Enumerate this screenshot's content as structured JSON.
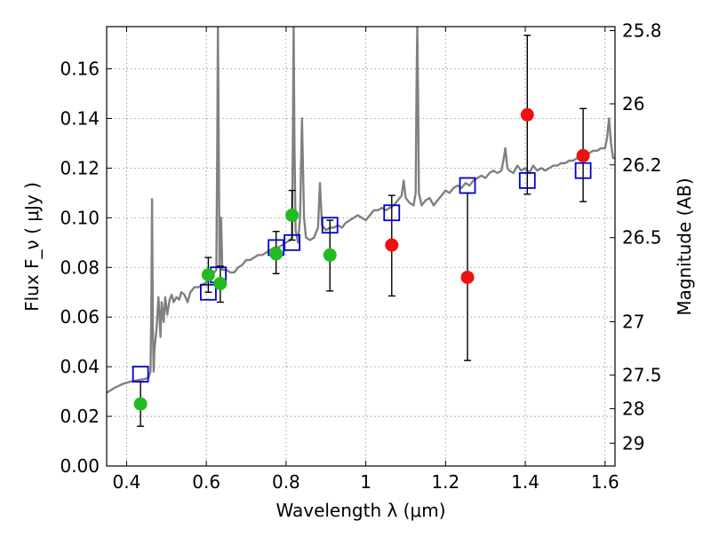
{
  "chart_data": {
    "type": "scatter",
    "title": "",
    "xlabel": "Wavelength  λ (μm)",
    "ylabel": "Flux  F_ν  ( μJy )",
    "y2label": "Magnitude (AB)",
    "xlim": [
      0.35,
      1.625
    ],
    "ylim": [
      0.0,
      0.177
    ],
    "grid": true,
    "x_ticks": [
      0.4,
      0.6,
      0.8,
      1.0,
      1.2,
      1.4,
      1.6
    ],
    "x_tick_labels": [
      "0.4",
      "0.6",
      "0.8",
      "1",
      "1.2",
      "1.4",
      "1.6"
    ],
    "y_ticks": [
      0.0,
      0.02,
      0.04,
      0.06,
      0.08,
      0.1,
      0.12,
      0.14,
      0.16
    ],
    "y_tick_labels": [
      "0.00",
      "0.02",
      "0.04",
      "0.06",
      "0.08",
      "0.10",
      "0.12",
      "0.14",
      "0.16"
    ],
    "y2_ticks": [
      {
        "label": "25.8",
        "flux": 0.1754
      },
      {
        "label": "26",
        "flux": 0.1459
      },
      {
        "label": "26.2",
        "flux": 0.1213
      },
      {
        "label": "26.5",
        "flux": 0.092
      },
      {
        "label": "27",
        "flux": 0.0581
      },
      {
        "label": "27.5",
        "flux": 0.0366
      },
      {
        "label": "28",
        "flux": 0.0231
      },
      {
        "label": "29",
        "flux": 0.0092
      }
    ],
    "colors": {
      "spectrum": "#808080",
      "model": "#0000cc",
      "green": "#22bb22",
      "red": "#ee1111",
      "errorbar": "#000000",
      "grid": "#888888"
    },
    "series": [
      {
        "type": "line",
        "points": [
          [
            0.35,
            0.0295
          ],
          [
            0.37,
            0.0315
          ],
          [
            0.39,
            0.033
          ],
          [
            0.41,
            0.034
          ],
          [
            0.425,
            0.0345
          ],
          [
            0.445,
            0.035
          ],
          [
            0.455,
            0.0355
          ],
          [
            0.46,
            0.038
          ],
          [
            0.462,
            0.06
          ],
          [
            0.464,
            0.1075
          ],
          [
            0.466,
            0.056
          ],
          [
            0.468,
            0.038
          ],
          [
            0.47,
            0.047
          ],
          [
            0.475,
            0.055
          ],
          [
            0.48,
            0.068
          ],
          [
            0.485,
            0.052
          ],
          [
            0.488,
            0.066
          ],
          [
            0.493,
            0.058
          ],
          [
            0.497,
            0.068
          ],
          [
            0.502,
            0.061
          ],
          [
            0.508,
            0.067
          ],
          [
            0.513,
            0.069
          ],
          [
            0.518,
            0.066
          ],
          [
            0.525,
            0.068
          ],
          [
            0.532,
            0.067
          ],
          [
            0.537,
            0.07
          ],
          [
            0.545,
            0.069
          ],
          [
            0.553,
            0.066
          ],
          [
            0.56,
            0.07
          ],
          [
            0.57,
            0.072
          ],
          [
            0.58,
            0.072
          ],
          [
            0.59,
            0.073
          ],
          [
            0.6,
            0.074
          ],
          [
            0.61,
            0.076
          ],
          [
            0.62,
            0.078
          ],
          [
            0.625,
            0.079
          ],
          [
            0.627,
            0.12
          ],
          [
            0.629,
            0.177
          ],
          [
            0.631,
            0.13
          ],
          [
            0.633,
            0.08
          ],
          [
            0.637,
            0.1
          ],
          [
            0.64,
            0.079
          ],
          [
            0.65,
            0.079
          ],
          [
            0.66,
            0.078
          ],
          [
            0.67,
            0.078
          ],
          [
            0.68,
            0.08
          ],
          [
            0.69,
            0.081
          ],
          [
            0.7,
            0.083
          ],
          [
            0.71,
            0.083
          ],
          [
            0.72,
            0.084
          ],
          [
            0.73,
            0.085
          ],
          [
            0.74,
            0.085
          ],
          [
            0.75,
            0.086
          ],
          [
            0.76,
            0.087
          ],
          [
            0.77,
            0.088
          ],
          [
            0.78,
            0.088
          ],
          [
            0.79,
            0.089
          ],
          [
            0.8,
            0.09
          ],
          [
            0.81,
            0.091
          ],
          [
            0.815,
            0.092
          ],
          [
            0.817,
            0.13
          ],
          [
            0.819,
            0.177
          ],
          [
            0.821,
            0.13
          ],
          [
            0.824,
            0.095
          ],
          [
            0.83,
            0.09
          ],
          [
            0.835,
            0.1
          ],
          [
            0.84,
            0.14
          ],
          [
            0.845,
            0.1
          ],
          [
            0.85,
            0.092
          ],
          [
            0.86,
            0.091
          ],
          [
            0.87,
            0.092
          ],
          [
            0.88,
            0.096
          ],
          [
            0.885,
            0.114
          ],
          [
            0.89,
            0.097
          ],
          [
            0.9,
            0.095
          ],
          [
            0.91,
            0.096
          ],
          [
            0.92,
            0.096
          ],
          [
            0.93,
            0.097
          ],
          [
            0.94,
            0.096
          ],
          [
            0.95,
            0.098
          ],
          [
            0.96,
            0.099
          ],
          [
            0.97,
            0.1
          ],
          [
            0.98,
            0.101
          ],
          [
            0.99,
            0.1
          ],
          [
            1.0,
            0.099
          ],
          [
            1.01,
            0.101
          ],
          [
            1.02,
            0.103
          ],
          [
            1.03,
            0.103
          ],
          [
            1.04,
            0.104
          ],
          [
            1.05,
            0.103
          ],
          [
            1.06,
            0.104
          ],
          [
            1.07,
            0.105
          ],
          [
            1.08,
            0.107
          ],
          [
            1.09,
            0.109
          ],
          [
            1.095,
            0.115
          ],
          [
            1.1,
            0.108
          ],
          [
            1.11,
            0.106
          ],
          [
            1.12,
            0.105
          ],
          [
            1.125,
            0.11
          ],
          [
            1.127,
            0.15
          ],
          [
            1.129,
            0.177
          ],
          [
            1.131,
            0.15
          ],
          [
            1.133,
            0.11
          ],
          [
            1.14,
            0.105
          ],
          [
            1.15,
            0.107
          ],
          [
            1.16,
            0.108
          ],
          [
            1.17,
            0.105
          ],
          [
            1.18,
            0.107
          ],
          [
            1.19,
            0.109
          ],
          [
            1.2,
            0.111
          ],
          [
            1.21,
            0.11
          ],
          [
            1.22,
            0.112
          ],
          [
            1.23,
            0.113
          ],
          [
            1.24,
            0.112
          ],
          [
            1.25,
            0.114
          ],
          [
            1.26,
            0.113
          ],
          [
            1.27,
            0.115
          ],
          [
            1.28,
            0.116
          ],
          [
            1.29,
            0.117
          ],
          [
            1.3,
            0.116
          ],
          [
            1.31,
            0.118
          ],
          [
            1.32,
            0.119
          ],
          [
            1.33,
            0.118
          ],
          [
            1.34,
            0.119
          ],
          [
            1.345,
            0.123
          ],
          [
            1.35,
            0.128
          ],
          [
            1.355,
            0.12
          ],
          [
            1.36,
            0.119
          ],
          [
            1.37,
            0.118
          ],
          [
            1.38,
            0.121
          ],
          [
            1.39,
            0.119
          ],
          [
            1.4,
            0.12
          ],
          [
            1.41,
            0.118
          ],
          [
            1.42,
            0.121
          ],
          [
            1.43,
            0.119
          ],
          [
            1.44,
            0.12
          ],
          [
            1.45,
            0.119
          ],
          [
            1.46,
            0.12
          ],
          [
            1.47,
            0.121
          ],
          [
            1.48,
            0.121
          ],
          [
            1.49,
            0.122
          ],
          [
            1.5,
            0.122
          ],
          [
            1.51,
            0.123
          ],
          [
            1.52,
            0.123
          ],
          [
            1.53,
            0.124
          ],
          [
            1.54,
            0.124
          ],
          [
            1.55,
            0.125
          ],
          [
            1.56,
            0.126
          ],
          [
            1.57,
            0.127
          ],
          [
            1.58,
            0.127
          ],
          [
            1.59,
            0.128
          ],
          [
            1.6,
            0.128
          ],
          [
            1.605,
            0.132
          ],
          [
            1.61,
            0.14
          ],
          [
            1.615,
            0.13
          ],
          [
            1.62,
            0.124
          ],
          [
            1.625,
            0.124
          ]
        ]
      },
      {
        "type": "scatter",
        "marker": "open-square",
        "points": [
          [
            0.435,
            0.037
          ],
          [
            0.605,
            0.07
          ],
          [
            0.63,
            0.077
          ],
          [
            0.775,
            0.088
          ],
          [
            0.815,
            0.09
          ],
          [
            0.91,
            0.097
          ],
          [
            1.065,
            0.102
          ],
          [
            1.255,
            0.113
          ],
          [
            1.405,
            0.115
          ],
          [
            1.545,
            0.119
          ]
        ]
      },
      {
        "type": "scatter",
        "marker": "circle",
        "color": "green",
        "points": [
          {
            "x": 0.435,
            "y": 0.025,
            "yerr": [
              0.016,
              0.034
            ]
          },
          {
            "x": 0.605,
            "y": 0.077,
            "yerr": [
              0.07,
              0.084
            ]
          },
          {
            "x": 0.635,
            "y": 0.0735,
            "yerr": [
              0.066,
              0.0805
            ]
          },
          {
            "x": 0.775,
            "y": 0.0855,
            "yerr": [
              0.0775,
              0.0945
            ]
          },
          {
            "x": 0.815,
            "y": 0.101,
            "yerr": [
              0.091,
              0.111
            ]
          },
          {
            "x": 0.91,
            "y": 0.085,
            "yerr": [
              0.0705,
              0.099
            ]
          }
        ]
      },
      {
        "type": "scatter",
        "marker": "circle",
        "color": "red",
        "points": [
          {
            "x": 1.065,
            "y": 0.089,
            "yerr": [
              0.0685,
              0.109
            ]
          },
          {
            "x": 1.255,
            "y": 0.076,
            "yerr": [
              0.0425,
              0.11
            ]
          },
          {
            "x": 1.405,
            "y": 0.1415,
            "yerr": [
              0.1095,
              0.1735
            ]
          },
          {
            "x": 1.545,
            "y": 0.125,
            "yerr": [
              0.1065,
              0.144
            ]
          }
        ]
      }
    ]
  }
}
